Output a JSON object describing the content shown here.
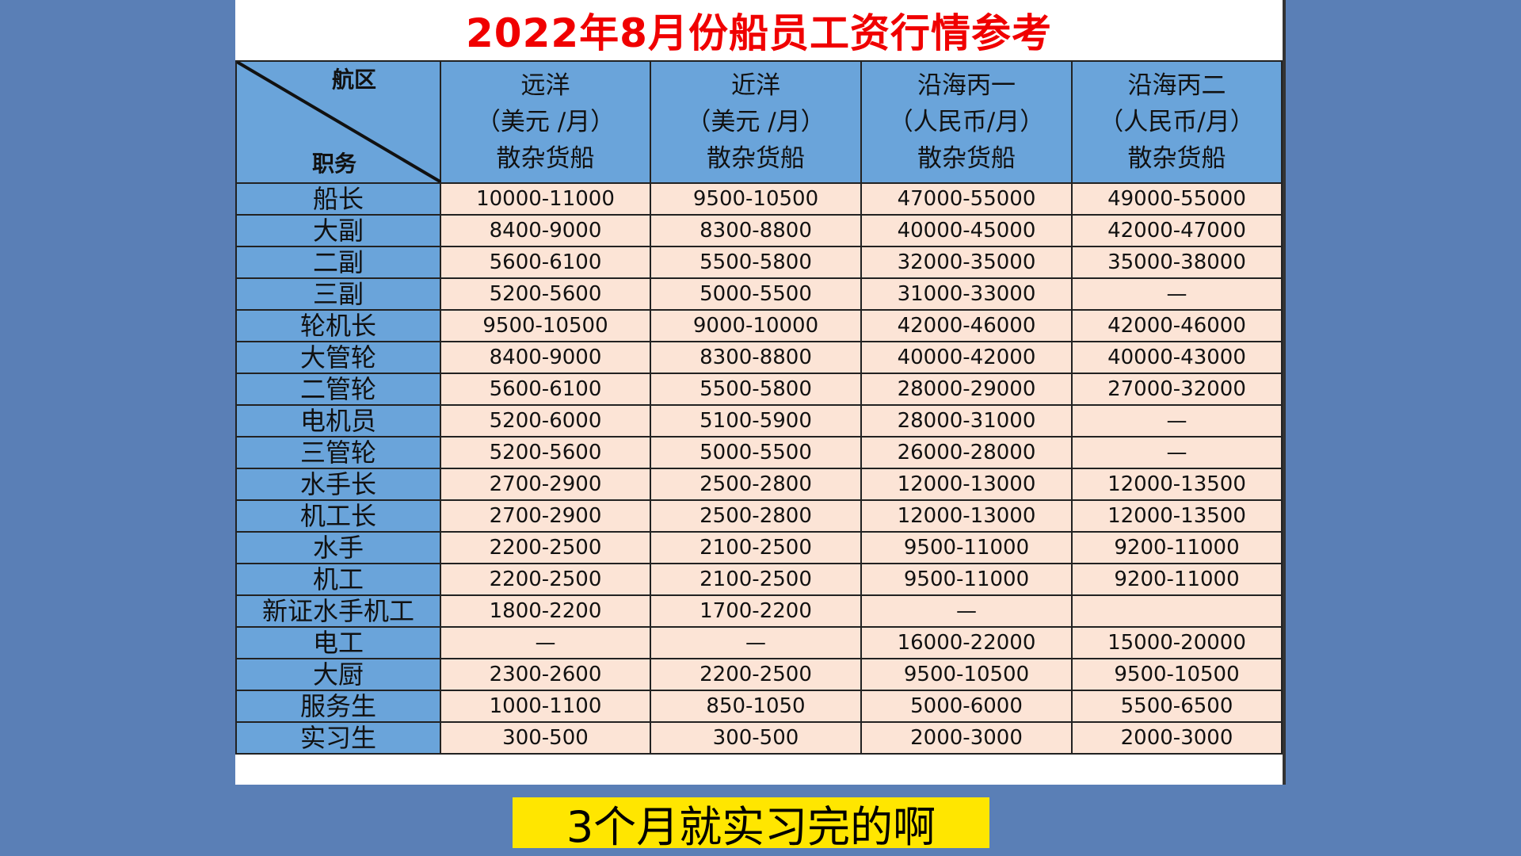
{
  "title": "2022年8月份船员工资行情参考",
  "header": {
    "corner_top": "航区",
    "corner_bottom": "职务",
    "columns": [
      {
        "region": "远洋",
        "unit": "（美元 /月）",
        "type": "散杂货船"
      },
      {
        "region": "近洋",
        "unit": "（美元 /月）",
        "type": "散杂货船"
      },
      {
        "region": "沿海丙一",
        "unit": "（人民币/月）",
        "type": "散杂货船"
      },
      {
        "region": "沿海丙二",
        "unit": "（人民币/月）",
        "type": "散杂货船"
      }
    ]
  },
  "rows": [
    {
      "role": "船长",
      "values": [
        "10000-11000",
        "9500-10500",
        "47000-55000",
        "49000-55000"
      ]
    },
    {
      "role": "大副",
      "values": [
        "8400-9000",
        "8300-8800",
        "40000-45000",
        "42000-47000"
      ]
    },
    {
      "role": "二副",
      "values": [
        "5600-6100",
        "5500-5800",
        "32000-35000",
        "35000-38000"
      ]
    },
    {
      "role": "三副",
      "values": [
        "5200-5600",
        "5000-5500",
        "31000-33000",
        "—"
      ]
    },
    {
      "role": "轮机长",
      "values": [
        "9500-10500",
        "9000-10000",
        "42000-46000",
        "42000-46000"
      ]
    },
    {
      "role": "大管轮",
      "values": [
        "8400-9000",
        "8300-8800",
        "40000-42000",
        "40000-43000"
      ]
    },
    {
      "role": "二管轮",
      "values": [
        "5600-6100",
        "5500-5800",
        "28000-29000",
        "27000-32000"
      ]
    },
    {
      "role": "电机员",
      "values": [
        "5200-6000",
        "5100-5900",
        "28000-31000",
        "—"
      ]
    },
    {
      "role": "三管轮",
      "values": [
        "5200-5600",
        "5000-5500",
        "26000-28000",
        "—"
      ]
    },
    {
      "role": "水手长",
      "values": [
        "2700-2900",
        "2500-2800",
        "12000-13000",
        "12000-13500"
      ]
    },
    {
      "role": "机工长",
      "values": [
        "2700-2900",
        "2500-2800",
        "12000-13000",
        "12000-13500"
      ]
    },
    {
      "role": "水手",
      "values": [
        "2200-2500",
        "2100-2500",
        "9500-11000",
        "9200-11000"
      ]
    },
    {
      "role": "机工",
      "values": [
        "2200-2500",
        "2100-2500",
        "9500-11000",
        "9200-11000"
      ]
    },
    {
      "role": "新证水手机工",
      "values": [
        "1800-2200",
        "1700-2200",
        "—",
        ""
      ]
    },
    {
      "role": "电工",
      "values": [
        "—",
        "—",
        "16000-22000",
        "15000-20000"
      ]
    },
    {
      "role": "大厨",
      "values": [
        "2300-2600",
        "2200-2500",
        "9500-10500",
        "9500-10500"
      ]
    },
    {
      "role": "服务生",
      "values": [
        "1000-1100",
        "850-1050",
        "5000-6000",
        "5500-6500"
      ]
    },
    {
      "role": "实习生",
      "values": [
        "300-500",
        "300-500",
        "2000-3000",
        "2000-3000"
      ]
    }
  ],
  "caption": "3个月就实习完的啊",
  "colors": {
    "background": "#5a7fb6",
    "header": "#6aa4da",
    "cell": "#fce4d6",
    "title": "#f00000",
    "caption_bg": "#ffe600"
  }
}
